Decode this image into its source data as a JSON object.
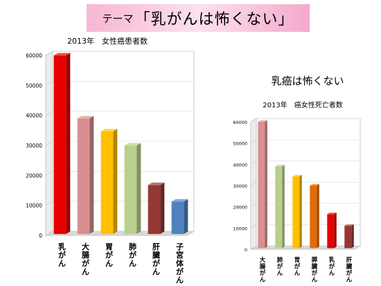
{
  "banner": {
    "prefix": "テーマ",
    "main": "「乳がんは怖くない」"
  },
  "chart_data": [
    {
      "type": "bar",
      "title": "2013年　女性癌患者数",
      "categories": [
        "乳がん",
        "大腸がん",
        "胃がん",
        "肺がん",
        "肝臓がん",
        "子宮体がん"
      ],
      "values": [
        59500,
        38500,
        34200,
        29500,
        16300,
        10800
      ],
      "colors": [
        "#e60000",
        "#d98f8f",
        "#ffc000",
        "#b8d08c",
        "#953735",
        "#4f81bd"
      ],
      "ylim": [
        0,
        60000
      ],
      "yticks": [
        0,
        10000,
        20000,
        30000,
        40000,
        50000,
        60000
      ],
      "style": "3d"
    },
    {
      "type": "bar",
      "heading": "乳癌は怖くない",
      "title": "2013年　癌女性死亡者数",
      "categories": [
        "大腸がん",
        "肺がん",
        "胃がん",
        "膵臓がん",
        "乳がん",
        "肝臓がん"
      ],
      "values": [
        59500,
        38500,
        33800,
        29500,
        16000,
        10500
      ],
      "colors": [
        "#d98f8f",
        "#b8d08c",
        "#ffc000",
        "#e36c09",
        "#e60000",
        "#953735"
      ],
      "ylim": [
        0,
        60000
      ],
      "yticks": [
        0,
        10000,
        20000,
        30000,
        40000,
        50000,
        60000
      ],
      "style": "3d"
    }
  ]
}
